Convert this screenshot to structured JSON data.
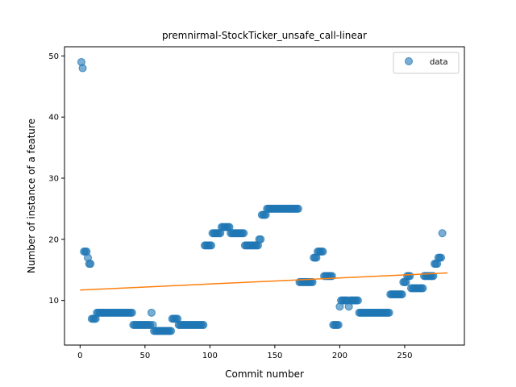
{
  "chart_data": {
    "type": "scatter",
    "title": "premnirmal-StockTicker_unsafe_call-linear",
    "xlabel": "Commit number",
    "ylabel": "Number of instance of a feature",
    "xlim": [
      -12,
      296
    ],
    "ylim": [
      2.7,
      51.5
    ],
    "xticks": [
      0,
      50,
      100,
      150,
      200,
      250
    ],
    "yticks": [
      10,
      20,
      30,
      40,
      50
    ],
    "legend": {
      "position": "top-right",
      "entries": [
        "data"
      ]
    },
    "colors": {
      "data": "#1f77b4",
      "fit": "#ff7f0e"
    },
    "grid": false,
    "series": [
      {
        "name": "data",
        "type": "scatter",
        "points": [
          [
            1,
            49
          ],
          [
            2,
            48
          ],
          [
            3,
            18
          ],
          [
            4,
            18
          ],
          [
            5,
            18
          ],
          [
            6,
            17
          ],
          [
            7,
            16
          ],
          [
            8,
            16
          ],
          [
            9,
            7
          ],
          [
            10,
            7
          ],
          [
            11,
            7
          ],
          [
            12,
            7
          ],
          [
            13,
            8
          ],
          [
            14,
            8
          ],
          [
            15,
            8
          ],
          [
            16,
            8
          ],
          [
            17,
            8
          ],
          [
            18,
            8
          ],
          [
            19,
            8
          ],
          [
            20,
            8
          ],
          [
            21,
            8
          ],
          [
            22,
            8
          ],
          [
            23,
            8
          ],
          [
            24,
            8
          ],
          [
            25,
            8
          ],
          [
            26,
            8
          ],
          [
            27,
            8
          ],
          [
            28,
            8
          ],
          [
            29,
            8
          ],
          [
            30,
            8
          ],
          [
            31,
            8
          ],
          [
            32,
            8
          ],
          [
            33,
            8
          ],
          [
            34,
            8
          ],
          [
            35,
            8
          ],
          [
            36,
            8
          ],
          [
            37,
            8
          ],
          [
            38,
            8
          ],
          [
            39,
            8
          ],
          [
            40,
            8
          ],
          [
            41,
            6
          ],
          [
            42,
            6
          ],
          [
            43,
            6
          ],
          [
            44,
            6
          ],
          [
            45,
            6
          ],
          [
            46,
            6
          ],
          [
            47,
            6
          ],
          [
            48,
            6
          ],
          [
            49,
            6
          ],
          [
            50,
            6
          ],
          [
            51,
            6
          ],
          [
            52,
            6
          ],
          [
            53,
            6
          ],
          [
            54,
            6
          ],
          [
            55,
            8
          ],
          [
            56,
            6
          ],
          [
            57,
            5
          ],
          [
            58,
            5
          ],
          [
            59,
            5
          ],
          [
            60,
            5
          ],
          [
            61,
            5
          ],
          [
            62,
            5
          ],
          [
            63,
            5
          ],
          [
            64,
            5
          ],
          [
            65,
            5
          ],
          [
            66,
            5
          ],
          [
            67,
            5
          ],
          [
            68,
            5
          ],
          [
            69,
            5
          ],
          [
            70,
            5
          ],
          [
            71,
            7
          ],
          [
            72,
            7
          ],
          [
            73,
            7
          ],
          [
            74,
            7
          ],
          [
            75,
            7
          ],
          [
            76,
            6
          ],
          [
            77,
            6
          ],
          [
            78,
            6
          ],
          [
            79,
            6
          ],
          [
            80,
            6
          ],
          [
            81,
            6
          ],
          [
            82,
            6
          ],
          [
            83,
            6
          ],
          [
            84,
            6
          ],
          [
            85,
            6
          ],
          [
            86,
            6
          ],
          [
            87,
            6
          ],
          [
            88,
            6
          ],
          [
            89,
            6
          ],
          [
            90,
            6
          ],
          [
            91,
            6
          ],
          [
            92,
            6
          ],
          [
            93,
            6
          ],
          [
            94,
            6
          ],
          [
            95,
            6
          ],
          [
            96,
            19
          ],
          [
            97,
            19
          ],
          [
            98,
            19
          ],
          [
            99,
            19
          ],
          [
            100,
            19
          ],
          [
            101,
            19
          ],
          [
            102,
            21
          ],
          [
            103,
            21
          ],
          [
            104,
            21
          ],
          [
            105,
            21
          ],
          [
            106,
            21
          ],
          [
            107,
            21
          ],
          [
            108,
            21
          ],
          [
            109,
            22
          ],
          [
            110,
            22
          ],
          [
            111,
            22
          ],
          [
            112,
            22
          ],
          [
            113,
            22
          ],
          [
            114,
            22
          ],
          [
            115,
            22
          ],
          [
            116,
            21
          ],
          [
            117,
            21
          ],
          [
            118,
            21
          ],
          [
            119,
            21
          ],
          [
            120,
            21
          ],
          [
            121,
            21
          ],
          [
            122,
            21
          ],
          [
            123,
            21
          ],
          [
            124,
            21
          ],
          [
            125,
            21
          ],
          [
            126,
            21
          ],
          [
            127,
            19
          ],
          [
            128,
            19
          ],
          [
            129,
            19
          ],
          [
            130,
            19
          ],
          [
            131,
            19
          ],
          [
            132,
            19
          ],
          [
            133,
            19
          ],
          [
            134,
            19
          ],
          [
            135,
            19
          ],
          [
            136,
            19
          ],
          [
            137,
            19
          ],
          [
            138,
            20
          ],
          [
            139,
            20
          ],
          [
            140,
            24
          ],
          [
            141,
            24
          ],
          [
            142,
            24
          ],
          [
            143,
            24
          ],
          [
            144,
            25
          ],
          [
            145,
            25
          ],
          [
            146,
            25
          ],
          [
            147,
            25
          ],
          [
            148,
            25
          ],
          [
            149,
            25
          ],
          [
            150,
            25
          ],
          [
            151,
            25
          ],
          [
            152,
            25
          ],
          [
            153,
            25
          ],
          [
            154,
            25
          ],
          [
            155,
            25
          ],
          [
            156,
            25
          ],
          [
            157,
            25
          ],
          [
            158,
            25
          ],
          [
            159,
            25
          ],
          [
            160,
            25
          ],
          [
            161,
            25
          ],
          [
            162,
            25
          ],
          [
            163,
            25
          ],
          [
            164,
            25
          ],
          [
            165,
            25
          ],
          [
            166,
            25
          ],
          [
            167,
            25
          ],
          [
            168,
            25
          ],
          [
            169,
            13
          ],
          [
            170,
            13
          ],
          [
            171,
            13
          ],
          [
            172,
            13
          ],
          [
            173,
            13
          ],
          [
            174,
            13
          ],
          [
            175,
            13
          ],
          [
            176,
            13
          ],
          [
            177,
            13
          ],
          [
            178,
            13
          ],
          [
            179,
            13
          ],
          [
            180,
            17
          ],
          [
            181,
            17
          ],
          [
            182,
            17
          ],
          [
            183,
            18
          ],
          [
            184,
            18
          ],
          [
            185,
            18
          ],
          [
            186,
            18
          ],
          [
            187,
            18
          ],
          [
            188,
            14
          ],
          [
            189,
            14
          ],
          [
            190,
            14
          ],
          [
            191,
            14
          ],
          [
            192,
            14
          ],
          [
            193,
            14
          ],
          [
            194,
            14
          ],
          [
            195,
            6
          ],
          [
            196,
            6
          ],
          [
            197,
            6
          ],
          [
            198,
            6
          ],
          [
            199,
            6
          ],
          [
            200,
            9
          ],
          [
            201,
            10
          ],
          [
            202,
            10
          ],
          [
            203,
            10
          ],
          [
            204,
            10
          ],
          [
            205,
            10
          ],
          [
            206,
            10
          ],
          [
            207,
            9
          ],
          [
            208,
            10
          ],
          [
            209,
            10
          ],
          [
            210,
            10
          ],
          [
            211,
            10
          ],
          [
            212,
            10
          ],
          [
            213,
            10
          ],
          [
            214,
            10
          ],
          [
            215,
            8
          ],
          [
            216,
            8
          ],
          [
            217,
            8
          ],
          [
            218,
            8
          ],
          [
            219,
            8
          ],
          [
            220,
            8
          ],
          [
            221,
            8
          ],
          [
            222,
            8
          ],
          [
            223,
            8
          ],
          [
            224,
            8
          ],
          [
            225,
            8
          ],
          [
            226,
            8
          ],
          [
            227,
            8
          ],
          [
            228,
            8
          ],
          [
            229,
            8
          ],
          [
            230,
            8
          ],
          [
            231,
            8
          ],
          [
            232,
            8
          ],
          [
            233,
            8
          ],
          [
            234,
            8
          ],
          [
            235,
            8
          ],
          [
            236,
            8
          ],
          [
            237,
            8
          ],
          [
            238,
            8
          ],
          [
            239,
            11
          ],
          [
            240,
            11
          ],
          [
            241,
            11
          ],
          [
            242,
            11
          ],
          [
            243,
            11
          ],
          [
            244,
            11
          ],
          [
            245,
            11
          ],
          [
            246,
            11
          ],
          [
            247,
            11
          ],
          [
            248,
            11
          ],
          [
            249,
            13
          ],
          [
            250,
            13
          ],
          [
            251,
            13
          ],
          [
            252,
            14
          ],
          [
            253,
            14
          ],
          [
            254,
            14
          ],
          [
            255,
            12
          ],
          [
            256,
            12
          ],
          [
            257,
            12
          ],
          [
            258,
            12
          ],
          [
            259,
            12
          ],
          [
            260,
            12
          ],
          [
            261,
            12
          ],
          [
            262,
            12
          ],
          [
            263,
            12
          ],
          [
            264,
            12
          ],
          [
            265,
            14
          ],
          [
            266,
            14
          ],
          [
            267,
            14
          ],
          [
            268,
            14
          ],
          [
            269,
            14
          ],
          [
            270,
            14
          ],
          [
            271,
            14
          ],
          [
            272,
            14
          ],
          [
            273,
            16
          ],
          [
            274,
            16
          ],
          [
            275,
            16
          ],
          [
            276,
            17
          ],
          [
            277,
            17
          ],
          [
            278,
            17
          ],
          [
            279,
            21
          ]
        ]
      },
      {
        "type": "line",
        "points": [
          [
            0,
            11.7
          ],
          [
            283,
            14.5
          ]
        ]
      }
    ]
  }
}
